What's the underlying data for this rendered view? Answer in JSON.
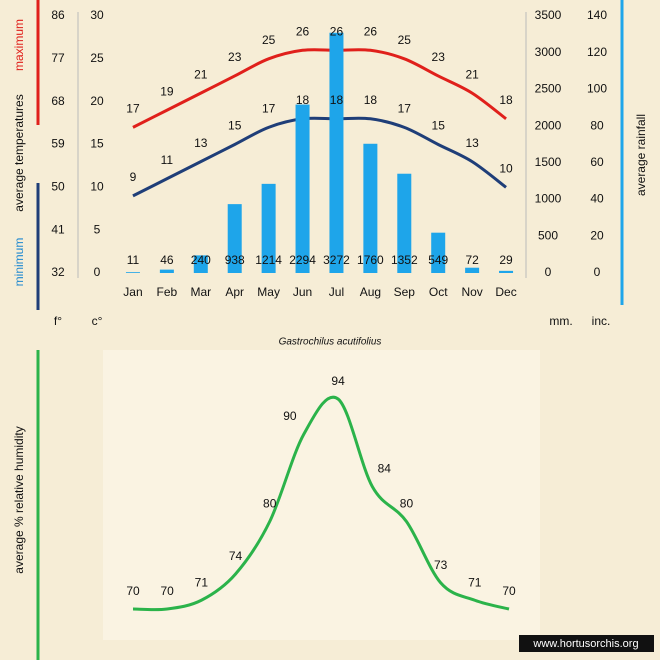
{
  "chart_data": [
    {
      "type": "combo",
      "ylabel": "average temperatures",
      "y_units": "c°",
      "f_units": "f°",
      "y2_units": "mm.",
      "in_units": "inc.",
      "y2label": "average rainfall",
      "categories": [
        "Jan",
        "Feb",
        "Mar",
        "Apr",
        "May",
        "Jun",
        "Jul",
        "Aug",
        "Sep",
        "Oct",
        "Nov",
        "Dec"
      ],
      "series": [
        {
          "name": "maximum",
          "type": "line",
          "color": "#e0201b",
          "values": [
            17,
            19,
            21,
            23,
            25,
            26,
            26,
            26,
            25,
            23,
            21,
            18
          ]
        },
        {
          "name": "minimum",
          "type": "line",
          "color": "#1f3e78",
          "values": [
            9,
            11,
            13,
            15,
            17,
            18,
            18,
            18,
            17,
            15,
            13,
            10
          ]
        },
        {
          "type": "bar",
          "axis": "y2",
          "color": "#1ea5ea",
          "values": [
            11,
            46,
            240,
            938,
            1214,
            2294,
            3272,
            1760,
            1352,
            549,
            72,
            29
          ]
        }
      ],
      "ylim": [
        0,
        30
      ],
      "yticks": [
        0,
        5,
        10,
        15,
        20,
        25,
        30
      ],
      "flim": [
        32,
        86
      ],
      "fticks": [
        32,
        41,
        50,
        59,
        68,
        77,
        86
      ],
      "y2lim": [
        0,
        3500
      ],
      "y2ticks": [
        0,
        500,
        1000,
        1500,
        2000,
        2500,
        3000,
        3500
      ],
      "inlim": [
        0,
        140
      ],
      "inticks": [
        0,
        20,
        40,
        60,
        80,
        100,
        120,
        140
      ]
    },
    {
      "type": "line",
      "caption": "Gastrochilus acutifolius",
      "ylabel": "average %  relative humidity",
      "series": [
        {
          "type": "line",
          "color": "#2bb34a",
          "values": [
            70,
            70,
            71,
            74,
            80,
            90,
            94,
            84,
            80,
            73,
            71,
            70
          ]
        }
      ],
      "watermark": "www.hortusorchis.org"
    }
  ]
}
